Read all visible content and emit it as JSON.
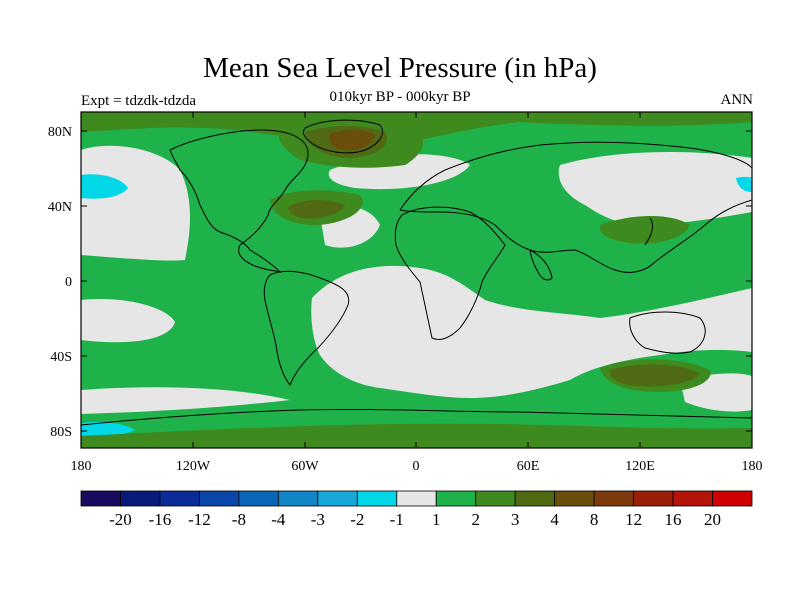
{
  "header": {
    "title": "Mean Sea Level Pressure (in hPa)",
    "subtitle": "010kyr BP - 000kyr BP",
    "left_label": "Expt = tdzdk-tdzda",
    "right_label": "ANN"
  },
  "axes": {
    "lat_ticks": [
      "80N",
      "40N",
      "0",
      "40S",
      "80S"
    ],
    "lon_ticks": [
      "180",
      "120W",
      "60W",
      "0",
      "60E",
      "120E",
      "180"
    ]
  },
  "colorbar": {
    "labels": [
      "-20",
      "-16",
      "-12",
      "-8",
      "-4",
      "-3",
      "-2",
      "-1",
      "1",
      "2",
      "3",
      "4",
      "8",
      "12",
      "16",
      "20"
    ],
    "colors": [
      "#1a0b5e",
      "#0a1a7a",
      "#0b2c96",
      "#0a47a8",
      "#0a66b8",
      "#1186c6",
      "#18a8d8",
      "#00d8e8",
      "#e6e6e6",
      "#20b24a",
      "#3e8a1e",
      "#4f6a12",
      "#6b4e0c",
      "#7c3a0c",
      "#9a1e0a",
      "#b5140a",
      "#d00000"
    ]
  },
  "map_colors": {
    "neutral": "#e6e6e6",
    "pos_1_2": "#20b24a",
    "pos_2_3": "#3e8a1e",
    "pos_3_4": "#4f6a12",
    "pos_4_8": "#6b4e0c",
    "neg_1_2": "#00d8e8"
  }
}
